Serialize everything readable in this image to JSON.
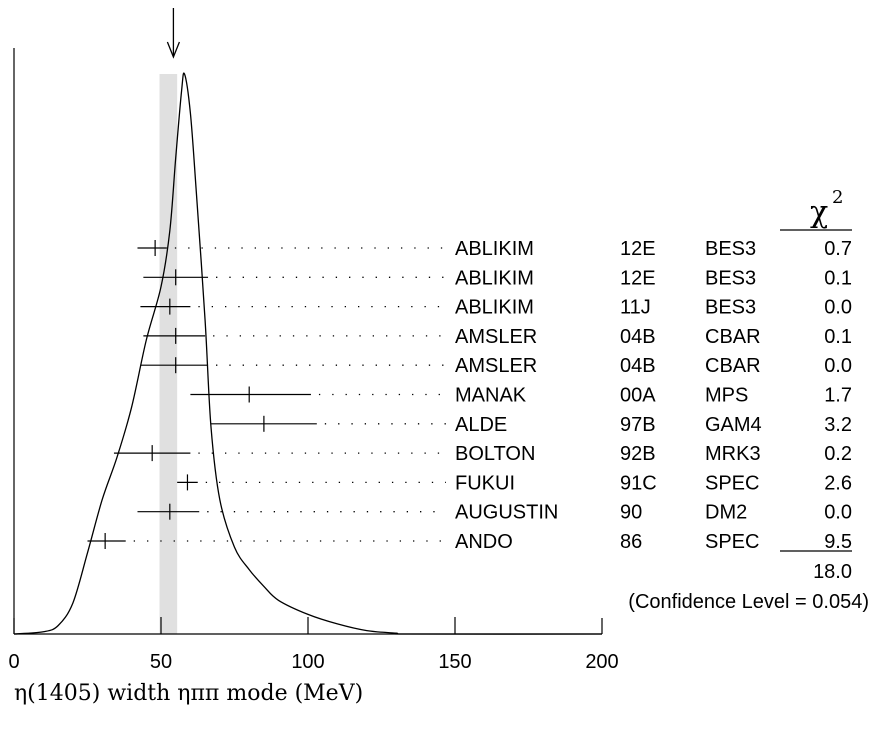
{
  "chart_data": {
    "type": "ideogram",
    "title": "",
    "xlabel": "η(1405) width ηππ mode (MeV)",
    "xlim": [
      0,
      200
    ],
    "x_ticks": [
      "0",
      "50",
      "100",
      "150",
      "200"
    ],
    "weighted_average": {
      "value": 51.5,
      "band": [
        49.5,
        55.5
      ]
    },
    "chi2_header": "χ",
    "chi2_header_sup": "2",
    "measurements": [
      {
        "author": "ABLIKIM",
        "ref": "12E",
        "experiment": "BES3",
        "chi2": "0.7",
        "value": 48.0,
        "err_low": 6.0,
        "err_high": 4.0
      },
      {
        "author": "ABLIKIM",
        "ref": "12E",
        "experiment": "BES3",
        "chi2": "0.1",
        "value": 55.0,
        "err_low": 11.0,
        "err_high": 11.0
      },
      {
        "author": "ABLIKIM",
        "ref": "11J",
        "experiment": "BES3",
        "chi2": "0.0",
        "value": 53.0,
        "err_low": 10.0,
        "err_high": 7.0
      },
      {
        "author": "AMSLER",
        "ref": "04B",
        "experiment": "CBAR",
        "chi2": "0.1",
        "value": 55.0,
        "err_low": 11.0,
        "err_high": 10.0
      },
      {
        "author": "AMSLER",
        "ref": "04B",
        "experiment": "CBAR",
        "chi2": "0.0",
        "value": 55.0,
        "err_low": 12.0,
        "err_high": 11.0
      },
      {
        "author": "MANAK",
        "ref": "00A",
        "experiment": "MPS",
        "chi2": "1.7",
        "value": 80.0,
        "err_low": 20.0,
        "err_high": 21.0
      },
      {
        "author": "ALDE",
        "ref": "97B",
        "experiment": "GAM4",
        "chi2": "3.2",
        "value": 85.0,
        "err_low": 18.0,
        "err_high": 18.0
      },
      {
        "author": "BOLTON",
        "ref": "92B",
        "experiment": "MRK3",
        "chi2": "0.2",
        "value": 47.0,
        "err_low": 13.0,
        "err_high": 13.0
      },
      {
        "author": "FUKUI",
        "ref": "91C",
        "experiment": "SPEC",
        "chi2": "2.6",
        "value": 59.0,
        "err_low": 3.5,
        "err_high": 3.5
      },
      {
        "author": "AUGUSTIN",
        "ref": "90",
        "experiment": "DM2",
        "chi2": "0.0",
        "value": 53.0,
        "err_low": 11.0,
        "err_high": 10.0
      },
      {
        "author": "ANDO",
        "ref": "86",
        "experiment": "SPEC",
        "chi2": "9.5",
        "value": 31.0,
        "err_low": 6.0,
        "err_high": 7.0
      }
    ],
    "chi2_total": "18.0",
    "confidence_level": "(Confidence Level = 0.054)",
    "ideogram_curve": [
      [
        0,
        0.0
      ],
      [
        10,
        0.004
      ],
      [
        15,
        0.015
      ],
      [
        20,
        0.055
      ],
      [
        25,
        0.145
      ],
      [
        30,
        0.24
      ],
      [
        35,
        0.315
      ],
      [
        40,
        0.405
      ],
      [
        45,
        0.525
      ],
      [
        50,
        0.62
      ],
      [
        53,
        0.72
      ],
      [
        55,
        0.85
      ],
      [
        57,
        0.97
      ],
      [
        58,
        1.0
      ],
      [
        60,
        0.93
      ],
      [
        62,
        0.79
      ],
      [
        65,
        0.56
      ],
      [
        67,
        0.37
      ],
      [
        70,
        0.24
      ],
      [
        75,
        0.155
      ],
      [
        80,
        0.115
      ],
      [
        85,
        0.085
      ],
      [
        90,
        0.06
      ],
      [
        100,
        0.035
      ],
      [
        110,
        0.018
      ],
      [
        120,
        0.006
      ],
      [
        130,
        0.0015
      ],
      [
        135,
        0.0
      ],
      [
        200,
        0.0
      ]
    ]
  }
}
